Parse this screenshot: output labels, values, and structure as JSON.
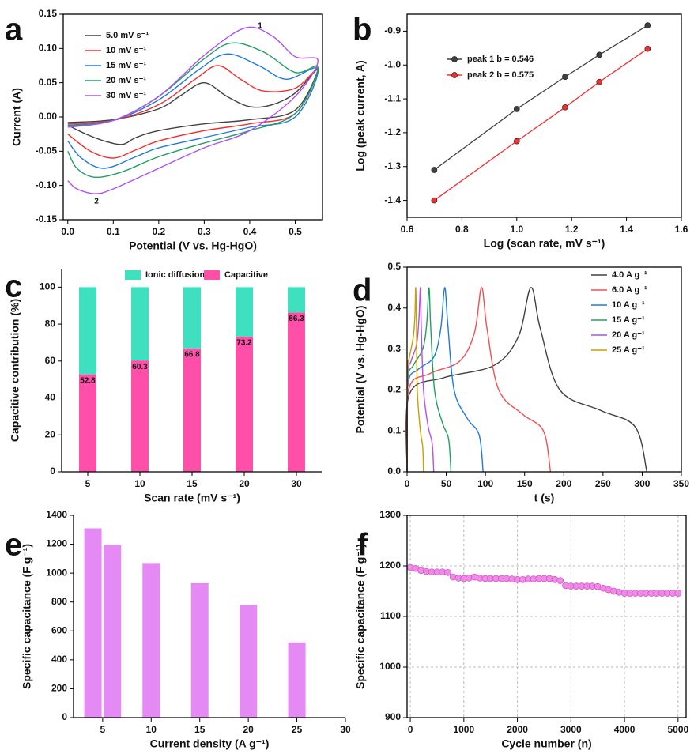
{
  "chart_data": [
    {
      "type": "line",
      "panel_label": "a",
      "x_label": "Potential (V vs. Hg-HgO)",
      "y_label": "Current (A)",
      "xlim": [
        -0.01,
        0.56
      ],
      "ylim": [
        -0.15,
        0.15
      ],
      "xticks": [
        {
          "value": 0,
          "label": "0.0"
        },
        0.1,
        0.2,
        0.3,
        0.4,
        0.5
      ],
      "yticks": [
        -0.15,
        {
          "value": -0.1,
          "label": "-0.10"
        },
        -0.05,
        {
          "value": 0,
          "label": "0.00"
        },
        0.05,
        {
          "value": 0.1,
          "label": "0.10"
        },
        0.15
      ],
      "legend": "upper left",
      "annotations": [
        "1",
        "2"
      ],
      "series": [
        {
          "name": "5.0 mV s⁻¹",
          "color": "#404040",
          "x": [
            0,
            0.1,
            0.2,
            0.25,
            0.3,
            0.35,
            0.4,
            0.45,
            0.5,
            0.55,
            0.5,
            0.4,
            0.3,
            0.2,
            0.15,
            0.12,
            0.08,
            0.04,
            0
          ],
          "values": [
            -0.008,
            -0.004,
            0.012,
            0.032,
            0.05,
            0.03,
            0.015,
            0.018,
            0.035,
            0.07,
            0.01,
            -0.004,
            -0.01,
            -0.02,
            -0.03,
            -0.04,
            -0.035,
            -0.025,
            -0.012
          ]
        },
        {
          "name": "10 mV s⁻¹",
          "color": "#f03030",
          "x": [
            0,
            0.1,
            0.2,
            0.28,
            0.33,
            0.38,
            0.43,
            0.5,
            0.55,
            0.5,
            0.4,
            0.3,
            0.2,
            0.15,
            0.1,
            0.05,
            0
          ],
          "values": [
            -0.01,
            -0.005,
            0.018,
            0.055,
            0.075,
            0.055,
            0.038,
            0.042,
            0.07,
            0.005,
            -0.01,
            -0.02,
            -0.035,
            -0.048,
            -0.06,
            -0.05,
            -0.025
          ]
        },
        {
          "name": "15 mV s⁻¹",
          "color": "#1e7ae0",
          "x": [
            0,
            0.1,
            0.2,
            0.29,
            0.35,
            0.42,
            0.48,
            0.55,
            0.5,
            0.4,
            0.3,
            0.2,
            0.15,
            0.08,
            0.03,
            0
          ],
          "values": [
            -0.012,
            -0.005,
            0.025,
            0.07,
            0.092,
            0.075,
            0.055,
            0.07,
            0.0,
            -0.015,
            -0.03,
            -0.045,
            -0.058,
            -0.075,
            -0.06,
            -0.035
          ]
        },
        {
          "name": "20 mV s⁻¹",
          "color": "#20a060",
          "x": [
            0,
            0.1,
            0.2,
            0.3,
            0.36,
            0.43,
            0.5,
            0.55,
            0.5,
            0.4,
            0.3,
            0.2,
            0.12,
            0.06,
            0.02,
            0
          ],
          "values": [
            -0.013,
            -0.005,
            0.03,
            0.085,
            0.108,
            0.095,
            0.065,
            0.072,
            0.005,
            -0.02,
            -0.038,
            -0.058,
            -0.08,
            -0.088,
            -0.075,
            -0.05
          ]
        },
        {
          "name": "30 mV s⁻¹",
          "color": "#b050f0",
          "x": [
            0,
            0.1,
            0.2,
            0.3,
            0.39,
            0.45,
            0.5,
            0.55,
            0.5,
            0.4,
            0.3,
            0.2,
            0.1,
            0.06,
            0.02,
            0
          ],
          "values": [
            -0.015,
            -0.005,
            0.03,
            0.09,
            0.13,
            0.118,
            0.088,
            0.082,
            0.03,
            -0.02,
            -0.045,
            -0.075,
            -0.105,
            -0.112,
            -0.105,
            -0.093
          ]
        }
      ]
    },
    {
      "type": "scatter",
      "panel_label": "b",
      "x_label": "Log (scan rate, mV s⁻¹)",
      "y_label": "Log (peak current, A)",
      "xlim": [
        0.6,
        1.6
      ],
      "ylim": [
        -1.45,
        -0.85
      ],
      "xticks": [
        0.6,
        0.8,
        {
          "value": 1,
          "label": "1.0"
        },
        1.2,
        1.4,
        1.6
      ],
      "yticks": [
        -1.4,
        -1.3,
        -1.2,
        -1.1,
        {
          "value": -1,
          "label": "-1.0"
        },
        -0.9
      ],
      "legend": "upper left",
      "fit_line": true,
      "x": [
        0.699,
        1,
        1.176,
        1.301,
        1.477
      ],
      "series": [
        {
          "name": "peak 1  b = 0.546",
          "color": "#404040",
          "values": [
            -1.31,
            -1.13,
            -1.035,
            -0.97,
            -0.883
          ]
        },
        {
          "name": "peak 2  b = 0.575",
          "color": "#f03030",
          "values": [
            -1.4,
            -1.225,
            -1.125,
            -1.05,
            -0.952
          ]
        }
      ]
    },
    {
      "type": "bar",
      "stacked": true,
      "panel_label": "c",
      "x_label": "Scan rate (mV s⁻¹)",
      "y_label": "Capacitive contribution (%)",
      "categories": [
        "5",
        "10",
        "15",
        "20",
        "30"
      ],
      "ylim": [
        0,
        110
      ],
      "yticks": [
        0,
        20,
        40,
        60,
        80,
        100
      ],
      "legend": "upper center",
      "series": [
        {
          "name": "Capacitive",
          "color": "#ff4fa8",
          "values": [
            52.8,
            60.3,
            66.8,
            73.2,
            86.3
          ]
        },
        {
          "name": "Ionic diffusion",
          "color": "#3fe0c0",
          "values": [
            47.2,
            39.7,
            33.2,
            26.8,
            13.7
          ]
        }
      ]
    },
    {
      "type": "line",
      "panel_label": "d",
      "x_label": "t (s)",
      "y_label": "Potential (V vs. Hg-HgO)",
      "xlim": [
        0,
        350
      ],
      "ylim": [
        0,
        0.5
      ],
      "xticks": [
        0,
        50,
        100,
        150,
        200,
        250,
        300,
        350
      ],
      "yticks": [
        {
          "value": 0,
          "label": "0.0"
        },
        0.1,
        0.2,
        0.3,
        0.4,
        0.5
      ],
      "legend": "upper right",
      "series": [
        {
          "name": "4.0 A g⁻¹",
          "color": "#404040",
          "x": [
            0,
            3,
            47,
            111,
            142,
            158,
            170,
            195,
            247,
            291,
            306
          ],
          "values": [
            0,
            0.19,
            0.23,
            0.26,
            0.33,
            0.45,
            0.35,
            0.2,
            0.15,
            0.11,
            0
          ]
        },
        {
          "name": "6.0 A g⁻¹",
          "color": "#f05050",
          "x": [
            0,
            2,
            29,
            67,
            86,
            95,
            102,
            117,
            148,
            174,
            183
          ],
          "values": [
            0,
            0.2,
            0.24,
            0.27,
            0.34,
            0.45,
            0.35,
            0.2,
            0.14,
            0.1,
            0
          ]
        },
        {
          "name": "10 A g⁻¹",
          "color": "#1e7ae0",
          "x": [
            0,
            1,
            14,
            34,
            43,
            48,
            52,
            60,
            77,
            92,
            97
          ],
          "values": [
            0,
            0.21,
            0.25,
            0.28,
            0.35,
            0.45,
            0.36,
            0.2,
            0.13,
            0.09,
            0
          ]
        },
        {
          "name": "15 A g⁻¹",
          "color": "#20a060",
          "x": [
            0,
            1,
            8,
            20,
            25,
            28,
            30,
            35,
            45,
            53,
            56
          ],
          "values": [
            0,
            0.22,
            0.26,
            0.3,
            0.36,
            0.45,
            0.36,
            0.2,
            0.12,
            0.08,
            0
          ]
        },
        {
          "name": "20 A g⁻¹",
          "color": "#b050f0",
          "x": [
            0,
            1,
            5,
            12,
            15,
            17,
            18,
            21,
            27,
            32,
            34
          ],
          "values": [
            0,
            0.23,
            0.27,
            0.31,
            0.37,
            0.45,
            0.36,
            0.2,
            0.11,
            0.07,
            0
          ]
        },
        {
          "name": "25 A g⁻¹",
          "color": "#c8a000",
          "x": [
            0,
            0.5,
            3,
            8,
            10,
            11,
            12,
            13,
            17,
            20,
            21
          ],
          "values": [
            0,
            0.24,
            0.28,
            0.33,
            0.38,
            0.45,
            0.36,
            0.2,
            0.1,
            0.06,
            0
          ]
        }
      ]
    },
    {
      "type": "bar",
      "panel_label": "e",
      "x_label": "Current density (A g⁻¹)",
      "y_label": "Specific capacitance (F g⁻¹)",
      "x": [
        4,
        6,
        10,
        15,
        20,
        25
      ],
      "values": [
        1310,
        1195,
        1070,
        930,
        780,
        520
      ],
      "color": "#e58af5",
      "xlim": [
        2,
        30
      ],
      "xticks": [
        5,
        10,
        15,
        20,
        25,
        30
      ],
      "ylim": [
        0,
        1400
      ],
      "yticks": [
        0,
        200,
        400,
        600,
        800,
        1000,
        1200,
        1400
      ]
    },
    {
      "type": "scatter",
      "panel_label": "f",
      "x_label": "Cycle number (n)",
      "y_label": "Specific capacitance (F g⁻¹)",
      "xlim": [
        -60,
        5150
      ],
      "ylim": [
        900,
        1300
      ],
      "xticks": [
        0,
        1000,
        2000,
        3000,
        4000,
        5000
      ],
      "yticks": [
        900,
        1000,
        1100,
        1200,
        1300
      ],
      "grid": true,
      "x": [
        0,
        100,
        200,
        300,
        400,
        500,
        600,
        700,
        800,
        900,
        1000,
        1100,
        1200,
        1300,
        1400,
        1500,
        1600,
        1700,
        1800,
        1900,
        2000,
        2100,
        2200,
        2300,
        2400,
        2500,
        2600,
        2700,
        2800,
        2900,
        3000,
        3100,
        3200,
        3300,
        3400,
        3500,
        3600,
        3700,
        3800,
        3900,
        4000,
        4100,
        4200,
        4300,
        4400,
        4500,
        4600,
        4700,
        4800,
        4900,
        5000
      ],
      "series": [
        {
          "color": "#f08ae8",
          "values": [
            1197,
            1195,
            1191,
            1189,
            1188,
            1188,
            1188,
            1187,
            1178,
            1176,
            1175,
            1176,
            1178,
            1176,
            1175,
            1175,
            1175,
            1175,
            1175,
            1174,
            1173,
            1173,
            1174,
            1174,
            1175,
            1175,
            1175,
            1173,
            1171,
            1161,
            1160,
            1160,
            1160,
            1160,
            1160,
            1159,
            1156,
            1153,
            1150,
            1148,
            1146,
            1146,
            1146,
            1146,
            1146,
            1146,
            1146,
            1146,
            1146,
            1146,
            1146
          ]
        }
      ]
    }
  ]
}
